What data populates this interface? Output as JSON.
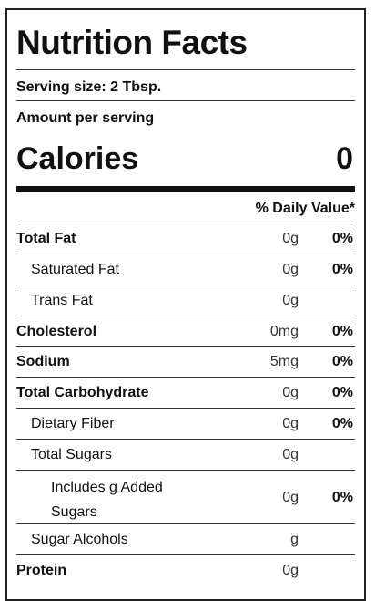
{
  "label": {
    "title": "Nutrition Facts",
    "serving_size": "Serving size: 2 Tbsp.",
    "amount_per_serving": "Amount per serving",
    "calories_label": "Calories",
    "calories_value": "0",
    "daily_value_header": "% Daily Value*"
  },
  "nutrients": [
    {
      "name": "Total Fat",
      "amount": "0g",
      "dv": "0%"
    },
    {
      "name": "Saturated Fat",
      "amount": "0g",
      "dv": "0%"
    },
    {
      "name": "Trans Fat",
      "amount": "0g",
      "dv": ""
    },
    {
      "name": "Cholesterol",
      "amount": "0mg",
      "dv": "0%"
    },
    {
      "name": "Sodium",
      "amount": "5mg",
      "dv": "0%"
    },
    {
      "name": "Total Carbohydrate",
      "amount": "0g",
      "dv": "0%"
    },
    {
      "name": "Dietary Fiber",
      "amount": "0g",
      "dv": "0%"
    },
    {
      "name": "Total Sugars",
      "amount": "0g",
      "dv": ""
    },
    {
      "name": "Includes g Added Sugars",
      "amount": "0g",
      "dv": "0%"
    },
    {
      "name": "Sugar Alcohols",
      "amount": "g",
      "dv": ""
    },
    {
      "name": "Protein",
      "amount": "0g",
      "dv": ""
    }
  ]
}
